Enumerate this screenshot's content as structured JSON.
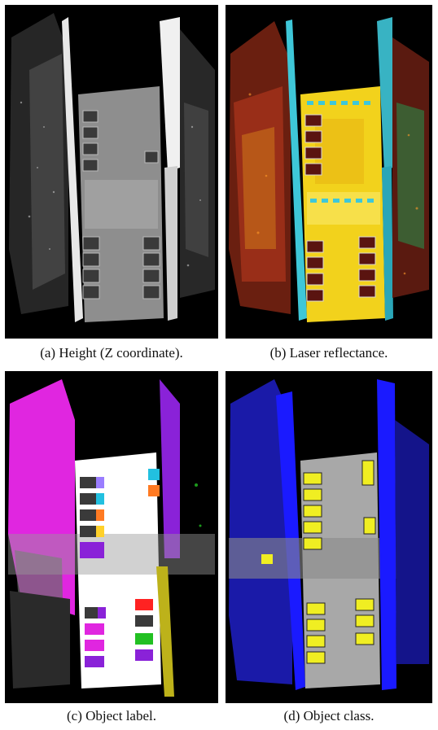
{
  "figure": {
    "panels": [
      {
        "id": "a",
        "caption": "(a) Height (Z coordinate)."
      },
      {
        "id": "b",
        "caption": "(b) Laser reflectance."
      },
      {
        "id": "c",
        "caption": "(c) Object label."
      },
      {
        "id": "d",
        "caption": "(d) Object class."
      }
    ]
  },
  "colors": {
    "background": "#000000",
    "height_floor": "#9a9a9a",
    "height_walls": "#e8e8e8",
    "reflectance_floor": "#f2d21c",
    "reflectance_walls": "#a5321a",
    "reflectance_markers": "#3ec7d8",
    "label_magenta": "#e026e0",
    "label_purple": "#8a22d8",
    "label_yellow": "#bdb21a",
    "label_floor": "#ffffff",
    "class_walls": "#1a1aff",
    "class_floor": "#a8a8a8",
    "class_objects": "#f0ee22"
  }
}
